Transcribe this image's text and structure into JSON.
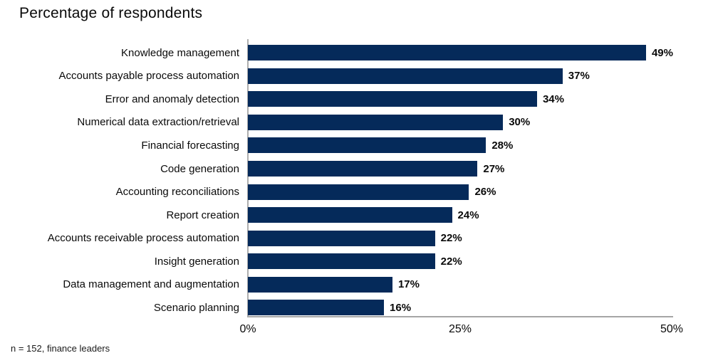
{
  "title": "Percentage of respondents",
  "footnote": "n = 152, finance leaders",
  "chart_data": {
    "type": "bar",
    "orientation": "horizontal",
    "title": "Percentage of respondents",
    "categories": [
      "Knowledge management",
      "Accounts payable process automation",
      "Error and anomaly detection",
      "Numerical data extraction/retrieval",
      "Financial forecasting",
      "Code generation",
      "Accounting reconciliations",
      "Report creation",
      "Accounts receivable process automation",
      "Insight generation",
      "Data management and augmentation",
      "Scenario planning"
    ],
    "values": [
      49,
      37,
      34,
      30,
      28,
      27,
      26,
      24,
      22,
      22,
      17,
      16
    ],
    "value_labels": [
      "49%",
      "37%",
      "34%",
      "30%",
      "28%",
      "27%",
      "26%",
      "24%",
      "22%",
      "22%",
      "17%",
      "16%"
    ],
    "unit": "%",
    "xlim": [
      0,
      50
    ],
    "x_ticks": [
      "0%",
      "25%",
      "50%"
    ],
    "bar_color": "#052a5a",
    "axis_color": "#aaaaaa",
    "grid": false,
    "legend": false,
    "footnote": "n = 152, finance leaders"
  }
}
